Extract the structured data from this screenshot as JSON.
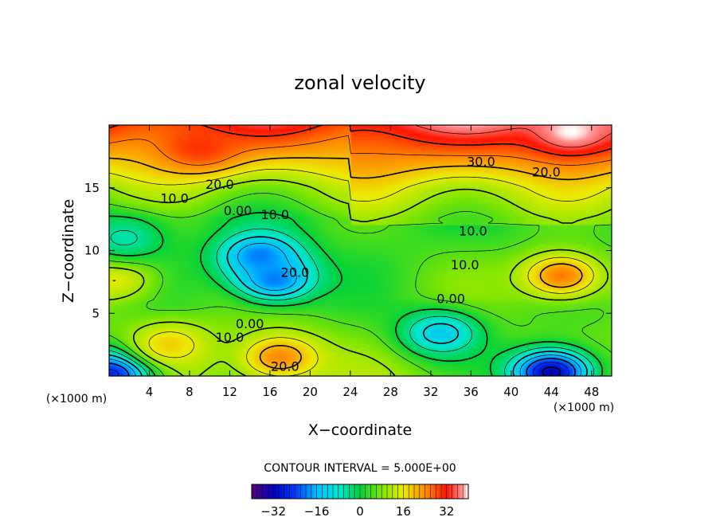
{
  "chart_data": {
    "type": "heatmap",
    "title": "zonal velocity",
    "xlabel": "X−coordinate",
    "ylabel": "Z−coordinate",
    "x_unit": "(×1000 m)",
    "y_unit": "(×1000 m)",
    "xlim": [
      0,
      50
    ],
    "ylim": [
      0,
      20
    ],
    "x_ticks": [
      4,
      8,
      12,
      16,
      20,
      24,
      28,
      32,
      36,
      40,
      44,
      48
    ],
    "y_ticks": [
      5,
      10,
      15
    ],
    "contour_interval_label": "CONTOUR INTERVAL = 5.000E+00",
    "colorbar": {
      "min": -40,
      "max": 40,
      "ticks": [
        -32,
        -16,
        0,
        16,
        32
      ],
      "tick_labels": [
        "−32",
        "−16",
        "0",
        "16",
        "32"
      ]
    },
    "features": [
      {
        "kind": "max",
        "x": 46,
        "z": 19.5,
        "value": 40
      },
      {
        "kind": "max",
        "x": 9,
        "z": 18.2,
        "value": 30
      },
      {
        "kind": "min",
        "x": 15,
        "z": 9.6,
        "value": -20
      },
      {
        "kind": "min",
        "x": 16.5,
        "z": 7.7,
        "value": -20
      },
      {
        "kind": "min",
        "x": 33,
        "z": 3.4,
        "value": -13
      },
      {
        "kind": "min",
        "x": 44,
        "z": 0.3,
        "value": -32
      },
      {
        "kind": "min",
        "x": 0.5,
        "z": 0.3,
        "value": -28
      },
      {
        "kind": "max",
        "x": 45,
        "z": 8.0,
        "value": 25
      },
      {
        "kind": "max",
        "x": 17,
        "z": 1.5,
        "value": 24
      },
      {
        "kind": "max",
        "x": 6,
        "z": 2.5,
        "value": 18
      },
      {
        "kind": "max",
        "x": 0.6,
        "z": 7.8,
        "value": 16
      },
      {
        "kind": "min",
        "x": 1.5,
        "z": 11.0,
        "value": -6
      }
    ],
    "contour_labels": [
      {
        "text": "30.0",
        "x": 37,
        "z": 17.1
      },
      {
        "text": "20.0",
        "x": 43.5,
        "z": 16.3
      },
      {
        "text": "20.0",
        "x": 11,
        "z": 15.3
      },
      {
        "text": "10.0",
        "x": 6.5,
        "z": 14.2
      },
      {
        "text": "0.00",
        "x": 12.8,
        "z": 13.2
      },
      {
        "text": "10.0",
        "x": 16.5,
        "z": 12.9
      },
      {
        "text": "20.0",
        "x": 18.5,
        "z": 8.3
      },
      {
        "text": "10.0",
        "x": 36.2,
        "z": 11.6
      },
      {
        "text": "10.0",
        "x": 35.4,
        "z": 8.9
      },
      {
        "text": "0.00",
        "x": 34,
        "z": 6.2
      },
      {
        "text": "0.00",
        "x": 14,
        "z": 4.2
      },
      {
        "text": "10.0",
        "x": 12,
        "z": 3.1
      },
      {
        "text": "20.0",
        "x": 17.5,
        "z": 0.8
      }
    ]
  }
}
